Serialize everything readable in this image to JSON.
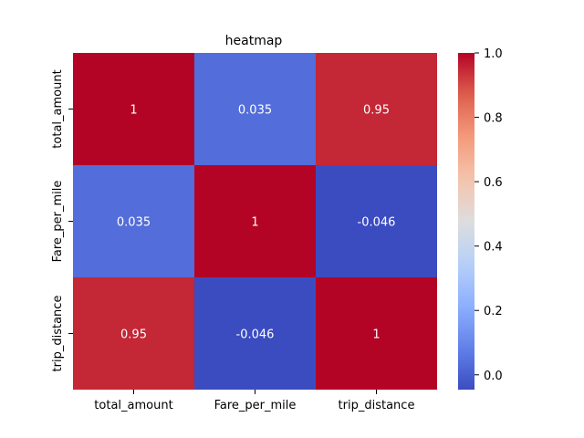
{
  "chart_data": {
    "type": "heatmap",
    "title": "heatmap",
    "xlabel": "",
    "ylabel": "",
    "x_categories": [
      "total_amount",
      "Fare_per_mile",
      "trip_distance"
    ],
    "y_categories": [
      "total_amount",
      "Fare_per_mile",
      "trip_distance"
    ],
    "values": [
      [
        1,
        0.035,
        0.95
      ],
      [
        0.035,
        1,
        -0.046
      ],
      [
        0.95,
        -0.046,
        1
      ]
    ],
    "annotations": [
      [
        "1",
        "0.035",
        "0.95"
      ],
      [
        "0.035",
        "1",
        "-0.046"
      ],
      [
        "0.95",
        "-0.046",
        "1"
      ]
    ],
    "colormap": "coolwarm",
    "colorbar": {
      "min": -0.046,
      "max": 1,
      "ticks": [
        0.0,
        0.2,
        0.4,
        0.6,
        0.8,
        1.0
      ],
      "tick_labels": [
        "0.0",
        "0.2",
        "0.4",
        "0.6",
        "0.8",
        "1.0"
      ]
    },
    "annotation_color": "#ffffff",
    "grid": false
  }
}
